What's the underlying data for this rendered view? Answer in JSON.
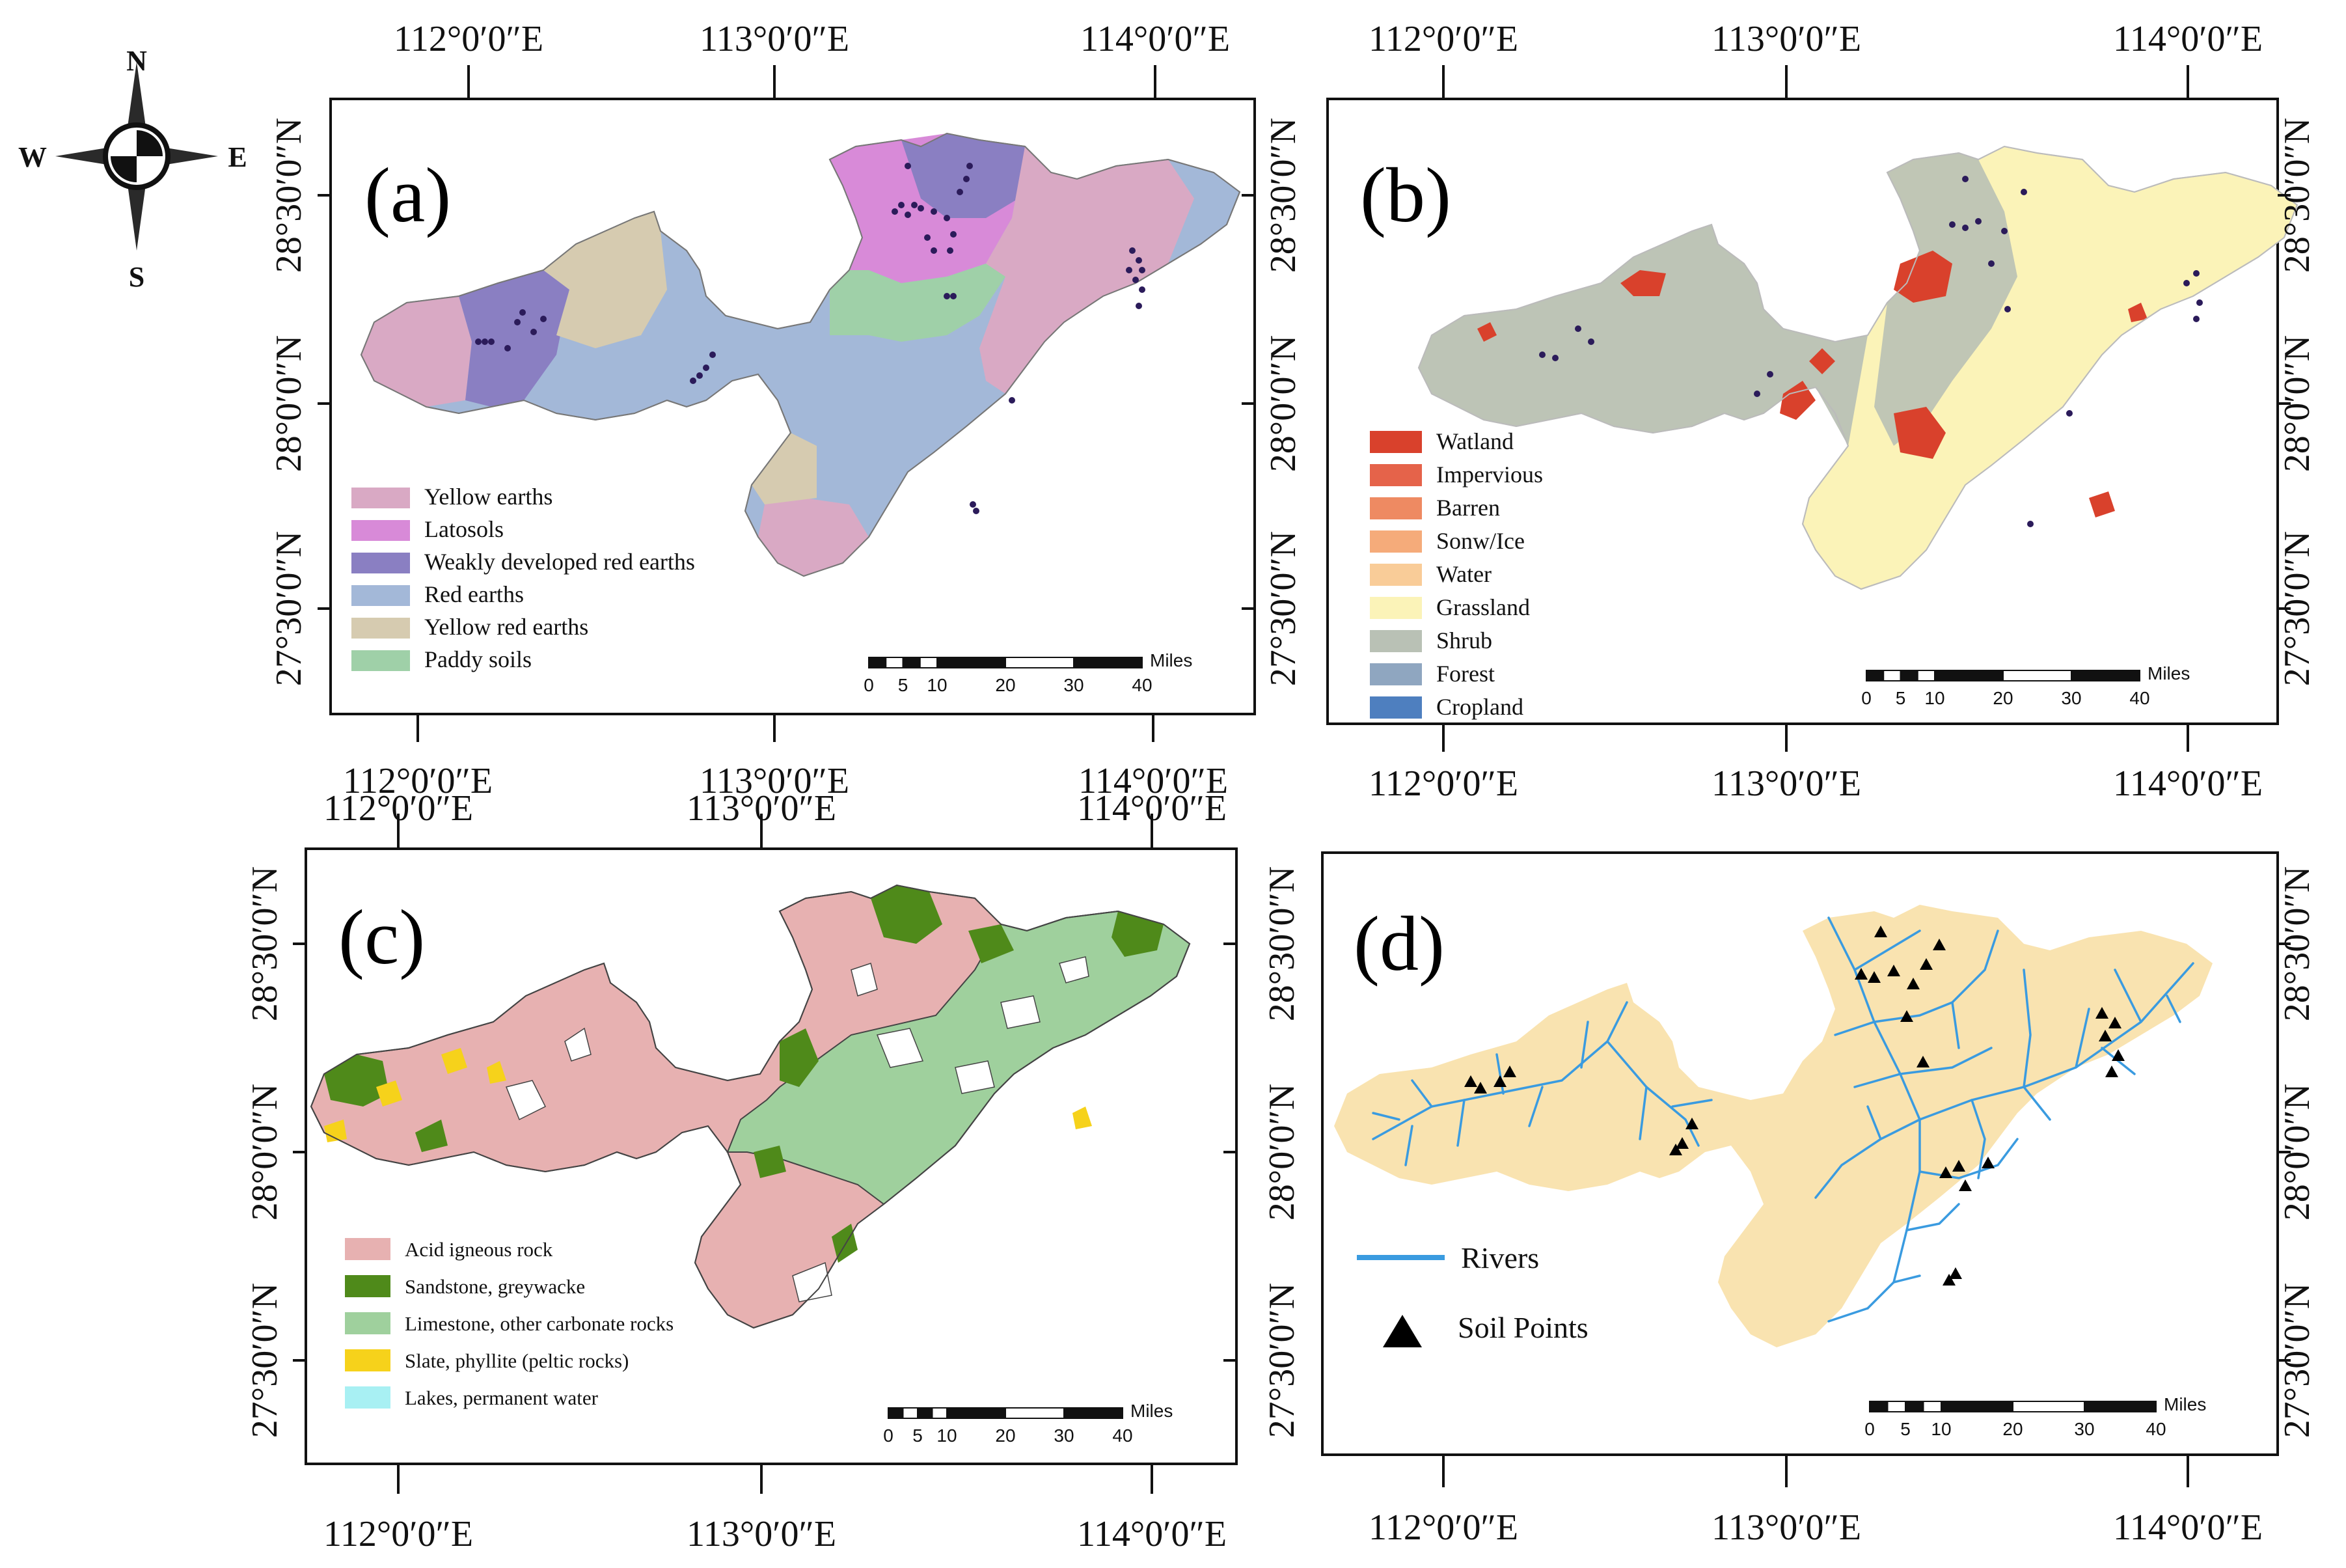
{
  "compass": {
    "n": "N",
    "s": "S",
    "e": "E",
    "w": "W"
  },
  "graticule": {
    "lon": [
      "112°0′0″E",
      "113°0′0″E",
      "114°0′0″E"
    ],
    "lat": [
      "28°30′0″N",
      "28°0′0″N",
      "27°30′0″N"
    ]
  },
  "scalebar": {
    "unit": "Miles",
    "ticks": [
      "0",
      "5",
      "10",
      "20",
      "30",
      "40"
    ]
  },
  "panels": {
    "a": {
      "letter": "(a)",
      "legend": [
        {
          "label": "Yellow earths",
          "color": "#d9a9c4"
        },
        {
          "label": "Latosols",
          "color": "#d88ad8"
        },
        {
          "label": "Weakly developed red earths",
          "color": "#8a7fc2"
        },
        {
          "label": "Red earths",
          "color": "#a3b8d8"
        },
        {
          "label": "Yellow red earths",
          "color": "#d6cbb0"
        },
        {
          "label": "Paddy soils",
          "color": "#9fd0a8"
        }
      ]
    },
    "b": {
      "letter": "(b)",
      "legend": [
        {
          "label": "Watland",
          "color": "#d9412c"
        },
        {
          "label": "Impervious",
          "color": "#e5634a"
        },
        {
          "label": "Barren",
          "color": "#ee8a62"
        },
        {
          "label": "Sonw/Ice",
          "color": "#f5ab7a"
        },
        {
          "label": "Water",
          "color": "#f9cc98"
        },
        {
          "label": "Grassland",
          "color": "#fbf3b8"
        },
        {
          "label": "Shrub",
          "color": "#b9c1b5"
        },
        {
          "label": "Forest",
          "color": "#8fa6c0"
        },
        {
          "label": "Cropland",
          "color": "#4e7fbf"
        }
      ]
    },
    "c": {
      "letter": "(c)",
      "legend": [
        {
          "label": "Acid igneous rock",
          "color": "#e7b1b1"
        },
        {
          "label": "Sandstone, greywacke",
          "color": "#4f8a1a"
        },
        {
          "label": "Limestone, other carbonate rocks",
          "color": "#9fd09d"
        },
        {
          "label": "Slate, phyllite (peltic rocks)",
          "color": "#f6d21b"
        },
        {
          "label": "Lakes, permanent water",
          "color": "#a8f0f3"
        }
      ]
    },
    "d": {
      "letter": "(d)",
      "legend": [
        {
          "label": "Rivers",
          "color": "#3a9be0"
        },
        {
          "label": "Soil Points",
          "color": "#000000"
        }
      ],
      "fill": "#f9e3b0"
    }
  }
}
